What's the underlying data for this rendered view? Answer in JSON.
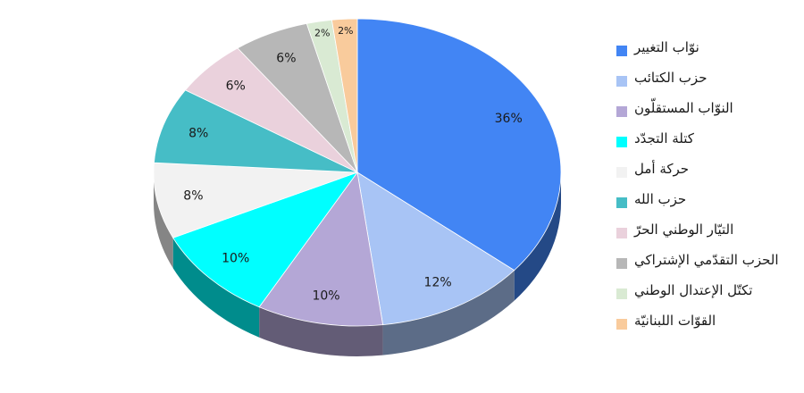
{
  "chart_data": {
    "type": "pie",
    "unit": "%",
    "categories": [
      "نوّاب التغيير",
      "حزب الكتائب",
      "النوّاب المستقلّون",
      "كتلة التجدّد",
      "حركة أمل",
      "حزب الله",
      "التيّار الوطني الحرّ",
      "الحزب التقدّمي الإشتراكي",
      "تكتّل الإعتدال الوطني",
      "القوّات اللبنانيّة"
    ],
    "values": [
      36,
      12,
      10,
      10,
      8,
      8,
      6,
      6,
      2,
      2
    ],
    "slice_labels": [
      "36%",
      "12%",
      "10%",
      "10%",
      "8%",
      "8%",
      "6%",
      "6%",
      "2%",
      "2%"
    ],
    "colors": [
      "#4285F4",
      "#A8C4F5",
      "#B4A7D6",
      "#00FFFF",
      "#F2F2F2",
      "#46BDC6",
      "#EAD1DC",
      "#B7B7B7",
      "#D9EAD3",
      "#F9CB9C"
    ],
    "legend": {
      "position": "right"
    }
  }
}
